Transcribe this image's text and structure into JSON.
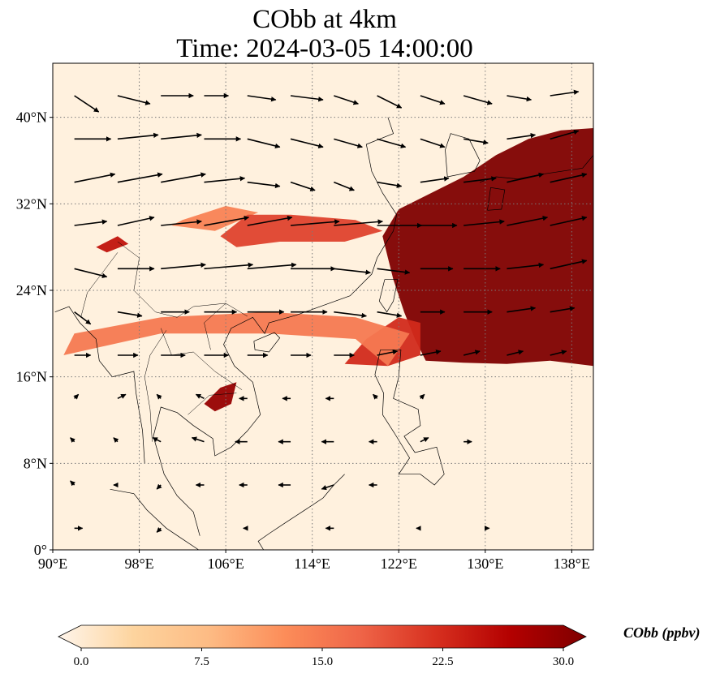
{
  "title": {
    "line1": "CObb at 4km",
    "line2": "Time: 2024-03-05 14:00:00"
  },
  "map": {
    "lon_range": [
      90,
      140
    ],
    "lat_range": [
      0,
      45
    ],
    "lon_ticks": [
      {
        "value": 90,
        "label": "90°E"
      },
      {
        "value": 98,
        "label": "98°E"
      },
      {
        "value": 106,
        "label": "106°E"
      },
      {
        "value": 114,
        "label": "114°E"
      },
      {
        "value": 122,
        "label": "122°E"
      },
      {
        "value": 130,
        "label": "130°E"
      },
      {
        "value": 138,
        "label": "138°E"
      }
    ],
    "lat_ticks": [
      {
        "value": 0,
        "label": "0°"
      },
      {
        "value": 8,
        "label": "8°N"
      },
      {
        "value": 16,
        "label": "16°N"
      },
      {
        "value": 24,
        "label": "24°N"
      },
      {
        "value": 32,
        "label": "32°N"
      },
      {
        "value": 40,
        "label": "40°N"
      }
    ],
    "gridlines": true,
    "colors": {
      "background": "#fff1de",
      "low": "#fde4c0",
      "mid": "#f4a36a",
      "high": "#d9432b",
      "max": "#7f0000",
      "grid": "#7a7a7a",
      "coast": "#000000"
    },
    "plumes": [
      {
        "level": 30,
        "points": [
          [
            120.5,
            29
          ],
          [
            122,
            31.5
          ],
          [
            125,
            33
          ],
          [
            128,
            34.5
          ],
          [
            131,
            36.5
          ],
          [
            134,
            38
          ],
          [
            137,
            38.8
          ],
          [
            140,
            39
          ],
          [
            140,
            17
          ],
          [
            136,
            17.5
          ],
          [
            132,
            17.2
          ],
          [
            128,
            17.3
          ],
          [
            124.5,
            17.5
          ],
          [
            123.5,
            19.5
          ],
          [
            122.5,
            22
          ],
          [
            121.5,
            25
          ],
          [
            121,
            27
          ]
        ]
      },
      {
        "level": 22,
        "points": [
          [
            117,
            17.2
          ],
          [
            121,
            17
          ],
          [
            124,
            18
          ],
          [
            124,
            21
          ],
          [
            122,
            21.5
          ],
          [
            119,
            19.5
          ]
        ]
      },
      {
        "level": 15,
        "points": [
          [
            91,
            18
          ],
          [
            100,
            20
          ],
          [
            110,
            20
          ],
          [
            118,
            19.5
          ],
          [
            121,
            17
          ],
          [
            123,
            20
          ],
          [
            118,
            21.5
          ],
          [
            110,
            22
          ],
          [
            100,
            21.5
          ],
          [
            92,
            20
          ]
        ]
      },
      {
        "level": 14,
        "points": [
          [
            102,
            30.5
          ],
          [
            106,
            31.8
          ],
          [
            109,
            31.2
          ],
          [
            105,
            29.5
          ],
          [
            101,
            30
          ]
        ]
      },
      {
        "level": 20,
        "points": [
          [
            105.5,
            29
          ],
          [
            108,
            31
          ],
          [
            112,
            31
          ],
          [
            118,
            30.5
          ],
          [
            120.5,
            29.5
          ],
          [
            117,
            28.5
          ],
          [
            111,
            28.5
          ],
          [
            107,
            28
          ]
        ]
      },
      {
        "level": 24,
        "points": [
          [
            94,
            28
          ],
          [
            96,
            29
          ],
          [
            97,
            28.3
          ],
          [
            95,
            27.5
          ]
        ]
      },
      {
        "level": 28,
        "points": [
          [
            104,
            13.5
          ],
          [
            105.5,
            15
          ],
          [
            107,
            15.5
          ],
          [
            106.5,
            13.5
          ],
          [
            105,
            12.8
          ]
        ]
      }
    ],
    "wind_vectors": [
      {
        "lon": 92,
        "lat": 42,
        "u": 6,
        "v": -4
      },
      {
        "lon": 96,
        "lat": 42,
        "u": 8,
        "v": -2
      },
      {
        "lon": 100,
        "lat": 42,
        "u": 8,
        "v": 0
      },
      {
        "lon": 104,
        "lat": 42,
        "u": 6,
        "v": 0
      },
      {
        "lon": 108,
        "lat": 42,
        "u": 7,
        "v": -1
      },
      {
        "lon": 112,
        "lat": 42,
        "u": 8,
        "v": -1
      },
      {
        "lon": 116,
        "lat": 42,
        "u": 6,
        "v": -2
      },
      {
        "lon": 120,
        "lat": 42,
        "u": 6,
        "v": -3
      },
      {
        "lon": 124,
        "lat": 42,
        "u": 6,
        "v": -2
      },
      {
        "lon": 128,
        "lat": 42,
        "u": 7,
        "v": -2
      },
      {
        "lon": 132,
        "lat": 42,
        "u": 6,
        "v": -1
      },
      {
        "lon": 136,
        "lat": 42,
        "u": 7,
        "v": 1
      },
      {
        "lon": 92,
        "lat": 38,
        "u": 9,
        "v": 0
      },
      {
        "lon": 96,
        "lat": 38,
        "u": 10,
        "v": 1
      },
      {
        "lon": 100,
        "lat": 38,
        "u": 10,
        "v": 1
      },
      {
        "lon": 104,
        "lat": 38,
        "u": 9,
        "v": 0
      },
      {
        "lon": 108,
        "lat": 38,
        "u": 8,
        "v": -2
      },
      {
        "lon": 112,
        "lat": 38,
        "u": 8,
        "v": -2
      },
      {
        "lon": 116,
        "lat": 38,
        "u": 7,
        "v": -2
      },
      {
        "lon": 120,
        "lat": 38,
        "u": 7,
        "v": -2
      },
      {
        "lon": 124,
        "lat": 38,
        "u": 6,
        "v": -2
      },
      {
        "lon": 128,
        "lat": 38,
        "u": 6,
        "v": -1
      },
      {
        "lon": 132,
        "lat": 38,
        "u": 7,
        "v": 1
      },
      {
        "lon": 136,
        "lat": 38,
        "u": 7,
        "v": 2
      },
      {
        "lon": 92,
        "lat": 34,
        "u": 10,
        "v": 2
      },
      {
        "lon": 96,
        "lat": 34,
        "u": 11,
        "v": 2
      },
      {
        "lon": 100,
        "lat": 34,
        "u": 11,
        "v": 2
      },
      {
        "lon": 104,
        "lat": 34,
        "u": 10,
        "v": 1
      },
      {
        "lon": 108,
        "lat": 34,
        "u": 8,
        "v": -1
      },
      {
        "lon": 112,
        "lat": 34,
        "u": 6,
        "v": -2
      },
      {
        "lon": 116,
        "lat": 34,
        "u": 5,
        "v": -2
      },
      {
        "lon": 120,
        "lat": 34,
        "u": 6,
        "v": -1
      },
      {
        "lon": 124,
        "lat": 34,
        "u": 7,
        "v": 1
      },
      {
        "lon": 128,
        "lat": 34,
        "u": 8,
        "v": 1
      },
      {
        "lon": 132,
        "lat": 34,
        "u": 9,
        "v": 2
      },
      {
        "lon": 136,
        "lat": 34,
        "u": 9,
        "v": 2
      },
      {
        "lon": 92,
        "lat": 30,
        "u": 8,
        "v": 1
      },
      {
        "lon": 96,
        "lat": 30,
        "u": 9,
        "v": 2
      },
      {
        "lon": 100,
        "lat": 30,
        "u": 10,
        "v": 1
      },
      {
        "lon": 104,
        "lat": 30,
        "u": 11,
        "v": 2
      },
      {
        "lon": 108,
        "lat": 30,
        "u": 11,
        "v": 2
      },
      {
        "lon": 112,
        "lat": 30,
        "u": 12,
        "v": 1
      },
      {
        "lon": 116,
        "lat": 30,
        "u": 12,
        "v": 1
      },
      {
        "lon": 120,
        "lat": 30,
        "u": 11,
        "v": 0
      },
      {
        "lon": 124,
        "lat": 30,
        "u": 9,
        "v": 0
      },
      {
        "lon": 128,
        "lat": 30,
        "u": 10,
        "v": 1
      },
      {
        "lon": 132,
        "lat": 30,
        "u": 10,
        "v": 2
      },
      {
        "lon": 136,
        "lat": 30,
        "u": 9,
        "v": 2
      },
      {
        "lon": 92,
        "lat": 26,
        "u": 8,
        "v": -2
      },
      {
        "lon": 96,
        "lat": 26,
        "u": 9,
        "v": 0
      },
      {
        "lon": 100,
        "lat": 26,
        "u": 11,
        "v": 1
      },
      {
        "lon": 104,
        "lat": 26,
        "u": 12,
        "v": 1
      },
      {
        "lon": 108,
        "lat": 26,
        "u": 12,
        "v": 1
      },
      {
        "lon": 112,
        "lat": 26,
        "u": 11,
        "v": 0
      },
      {
        "lon": 116,
        "lat": 26,
        "u": 9,
        "v": -1
      },
      {
        "lon": 120,
        "lat": 26,
        "u": 8,
        "v": -1
      },
      {
        "lon": 124,
        "lat": 26,
        "u": 8,
        "v": 0
      },
      {
        "lon": 128,
        "lat": 26,
        "u": 9,
        "v": 0
      },
      {
        "lon": 132,
        "lat": 26,
        "u": 9,
        "v": 1
      },
      {
        "lon": 136,
        "lat": 26,
        "u": 9,
        "v": 2
      },
      {
        "lon": 92,
        "lat": 22,
        "u": 4,
        "v": -3
      },
      {
        "lon": 96,
        "lat": 22,
        "u": 6,
        "v": -1
      },
      {
        "lon": 100,
        "lat": 22,
        "u": 7,
        "v": 0
      },
      {
        "lon": 104,
        "lat": 22,
        "u": 8,
        "v": 0
      },
      {
        "lon": 108,
        "lat": 22,
        "u": 9,
        "v": 0
      },
      {
        "lon": 112,
        "lat": 22,
        "u": 9,
        "v": 0
      },
      {
        "lon": 116,
        "lat": 22,
        "u": 8,
        "v": -1
      },
      {
        "lon": 120,
        "lat": 22,
        "u": 6,
        "v": -1
      },
      {
        "lon": 124,
        "lat": 22,
        "u": 6,
        "v": 0
      },
      {
        "lon": 128,
        "lat": 22,
        "u": 7,
        "v": 0
      },
      {
        "lon": 132,
        "lat": 22,
        "u": 7,
        "v": 1
      },
      {
        "lon": 136,
        "lat": 22,
        "u": 6,
        "v": 1
      },
      {
        "lon": 92,
        "lat": 18,
        "u": 4,
        "v": 0
      },
      {
        "lon": 96,
        "lat": 18,
        "u": 5,
        "v": 0
      },
      {
        "lon": 100,
        "lat": 18,
        "u": 6,
        "v": 0
      },
      {
        "lon": 104,
        "lat": 18,
        "u": 6,
        "v": 0
      },
      {
        "lon": 108,
        "lat": 18,
        "u": 5,
        "v": 0
      },
      {
        "lon": 112,
        "lat": 18,
        "u": 5,
        "v": 0
      },
      {
        "lon": 116,
        "lat": 18,
        "u": 5,
        "v": 0
      },
      {
        "lon": 120,
        "lat": 18,
        "u": 5,
        "v": 1
      },
      {
        "lon": 124,
        "lat": 18,
        "u": 5,
        "v": 1
      },
      {
        "lon": 128,
        "lat": 18,
        "u": 4,
        "v": 1
      },
      {
        "lon": 132,
        "lat": 18,
        "u": 4,
        "v": 1
      },
      {
        "lon": 136,
        "lat": 18,
        "u": 4,
        "v": 1
      },
      {
        "lon": 92,
        "lat": 14,
        "u": 1,
        "v": 1
      },
      {
        "lon": 96,
        "lat": 14,
        "u": 2,
        "v": 1
      },
      {
        "lon": 100,
        "lat": 14,
        "u": -1,
        "v": 1
      },
      {
        "lon": 104,
        "lat": 14,
        "u": -2,
        "v": 1
      },
      {
        "lon": 108,
        "lat": 14,
        "u": -2,
        "v": 0
      },
      {
        "lon": 112,
        "lat": 14,
        "u": -2,
        "v": 0
      },
      {
        "lon": 116,
        "lat": 14,
        "u": -2,
        "v": 0
      },
      {
        "lon": 120,
        "lat": 14,
        "u": -1,
        "v": 1
      },
      {
        "lon": 124,
        "lat": 14,
        "u": 1,
        "v": 1
      },
      {
        "lon": 92,
        "lat": 10,
        "u": -1,
        "v": 1
      },
      {
        "lon": 96,
        "lat": 10,
        "u": -1,
        "v": 1
      },
      {
        "lon": 100,
        "lat": 10,
        "u": -2,
        "v": 1
      },
      {
        "lon": 104,
        "lat": 10,
        "u": -3,
        "v": 1
      },
      {
        "lon": 108,
        "lat": 10,
        "u": -3,
        "v": 0
      },
      {
        "lon": 112,
        "lat": 10,
        "u": -3,
        "v": 0
      },
      {
        "lon": 116,
        "lat": 10,
        "u": -3,
        "v": 0
      },
      {
        "lon": 120,
        "lat": 10,
        "u": -2,
        "v": 0
      },
      {
        "lon": 124,
        "lat": 10,
        "u": 2,
        "v": 1
      },
      {
        "lon": 128,
        "lat": 10,
        "u": 2,
        "v": 0
      },
      {
        "lon": 92,
        "lat": 6,
        "u": -1,
        "v": 1
      },
      {
        "lon": 96,
        "lat": 6,
        "u": -1,
        "v": 0
      },
      {
        "lon": 100,
        "lat": 6,
        "u": -1,
        "v": -1
      },
      {
        "lon": 104,
        "lat": 6,
        "u": -2,
        "v": 0
      },
      {
        "lon": 108,
        "lat": 6,
        "u": -2,
        "v": 0
      },
      {
        "lon": 112,
        "lat": 6,
        "u": -3,
        "v": 0
      },
      {
        "lon": 116,
        "lat": 6,
        "u": -3,
        "v": -1
      },
      {
        "lon": 120,
        "lat": 6,
        "u": -2,
        "v": 0
      },
      {
        "lon": 92,
        "lat": 2,
        "u": 2,
        "v": 0
      },
      {
        "lon": 100,
        "lat": 2,
        "u": -1,
        "v": -1
      },
      {
        "lon": 108,
        "lat": 2,
        "u": -1,
        "v": 0
      },
      {
        "lon": 116,
        "lat": 2,
        "u": -2,
        "v": 0
      },
      {
        "lon": 124,
        "lat": 2,
        "u": -1,
        "v": 0
      },
      {
        "lon": 130,
        "lat": 2,
        "u": 1,
        "v": 0
      }
    ]
  },
  "colorbar": {
    "title": "CObb (ppbv)",
    "min": 0,
    "max": 30,
    "extend": "both",
    "ticks": [
      {
        "value": 0,
        "label": "0.0"
      },
      {
        "value": 7.5,
        "label": "7.5"
      },
      {
        "value": 15,
        "label": "15.0"
      },
      {
        "value": 22.5,
        "label": "22.5"
      },
      {
        "value": 30,
        "label": "30.0"
      }
    ],
    "stops": [
      "#fff5eb",
      "#fdd49e",
      "#fdbb84",
      "#fc8d59",
      "#ef6548",
      "#d7301f",
      "#b30000",
      "#7f0000"
    ]
  }
}
